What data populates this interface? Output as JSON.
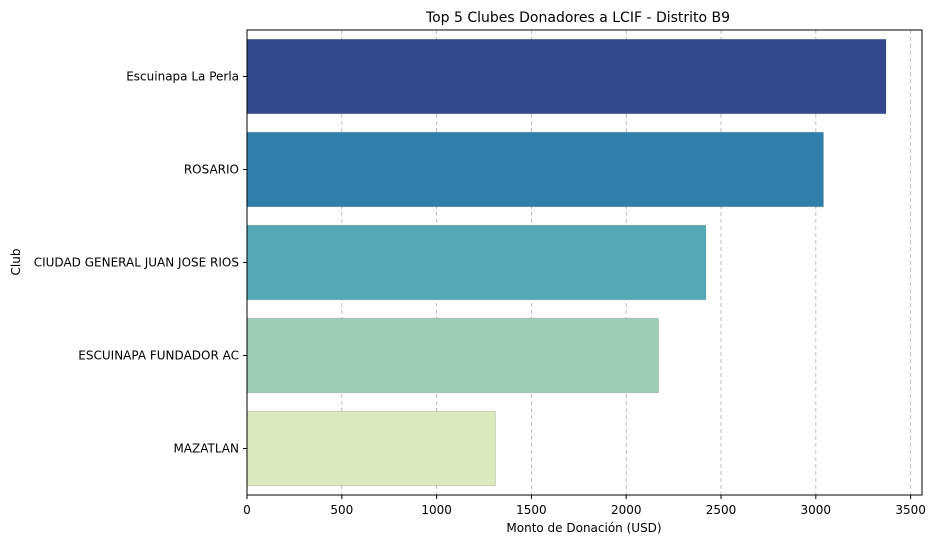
{
  "chart_data": {
    "type": "bar",
    "orientation": "horizontal",
    "title": "Top 5 Clubes Donadores a LCIF - Distrito B9",
    "xlabel": "Monto de Donación (USD)",
    "ylabel": "Club",
    "categories": [
      "Escuinapa La Perla",
      "ROSARIO",
      "CIUDAD GENERAL JUAN JOSE RIOS",
      "ESCUINAPA FUNDADOR AC",
      "MAZATLAN"
    ],
    "values": [
      3370,
      3040,
      2420,
      2170,
      1310
    ],
    "colors": [
      "#34498d",
      "#307fab",
      "#52a9b4",
      "#9ccdb7",
      "#dbe9bc"
    ],
    "xticks": [
      0,
      500,
      1000,
      1500,
      2000,
      2500,
      3000,
      3500
    ],
    "xlim": [
      0,
      3560
    ],
    "grid": "x-dashed",
    "legend": "none"
  }
}
